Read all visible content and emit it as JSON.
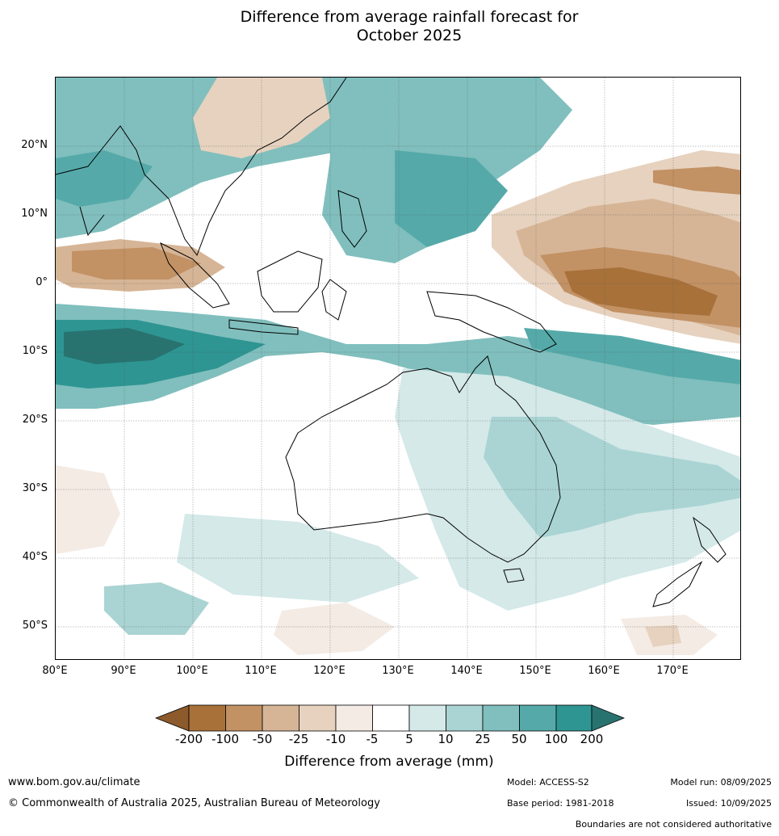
{
  "title": {
    "line1": "Difference from average rainfall forecast for",
    "line2": "October 2025"
  },
  "map": {
    "lat_labels": [
      "20°N",
      "10°N",
      "0°",
      "10°S",
      "20°S",
      "30°S",
      "40°S",
      "50°S"
    ],
    "lon_labels": [
      "80°E",
      "90°E",
      "100°E",
      "110°E",
      "120°E",
      "130°E",
      "140°E",
      "150°E",
      "160°E",
      "170°E"
    ]
  },
  "legend": {
    "label": "Difference from average (mm)",
    "ticks": [
      "-200",
      "-100",
      "-50",
      "-25",
      "-10",
      "-5",
      "5",
      "10",
      "25",
      "50",
      "100",
      "200"
    ],
    "colors": {
      "arrow_left": "#8c5a2b",
      "brown_200": "#a8713a",
      "brown_100": "#c29164",
      "brown_50": "#d6b596",
      "brown_25": "#e6d2bf",
      "brown_10": "#f4ebe4",
      "neutral": "#ffffff",
      "teal_5": "#d4e9e8",
      "teal_10": "#a9d4d3",
      "teal_25": "#80bfbe",
      "teal_50": "#55aaa9",
      "teal_100": "#2e9592",
      "arrow_right": "#287370"
    }
  },
  "footer": {
    "url": "www.bom.gov.au/climate",
    "copyright": "© Commonwealth of Australia 2025, Australian Bureau of Meteorology",
    "model": "Model: ACCESS-S2",
    "base_period": "Base period: 1981-2018",
    "model_run": "Model run: 08/09/2025",
    "issued": "Issued: 10/09/2025",
    "disclaimer": "Boundaries are not considered authoritative"
  }
}
